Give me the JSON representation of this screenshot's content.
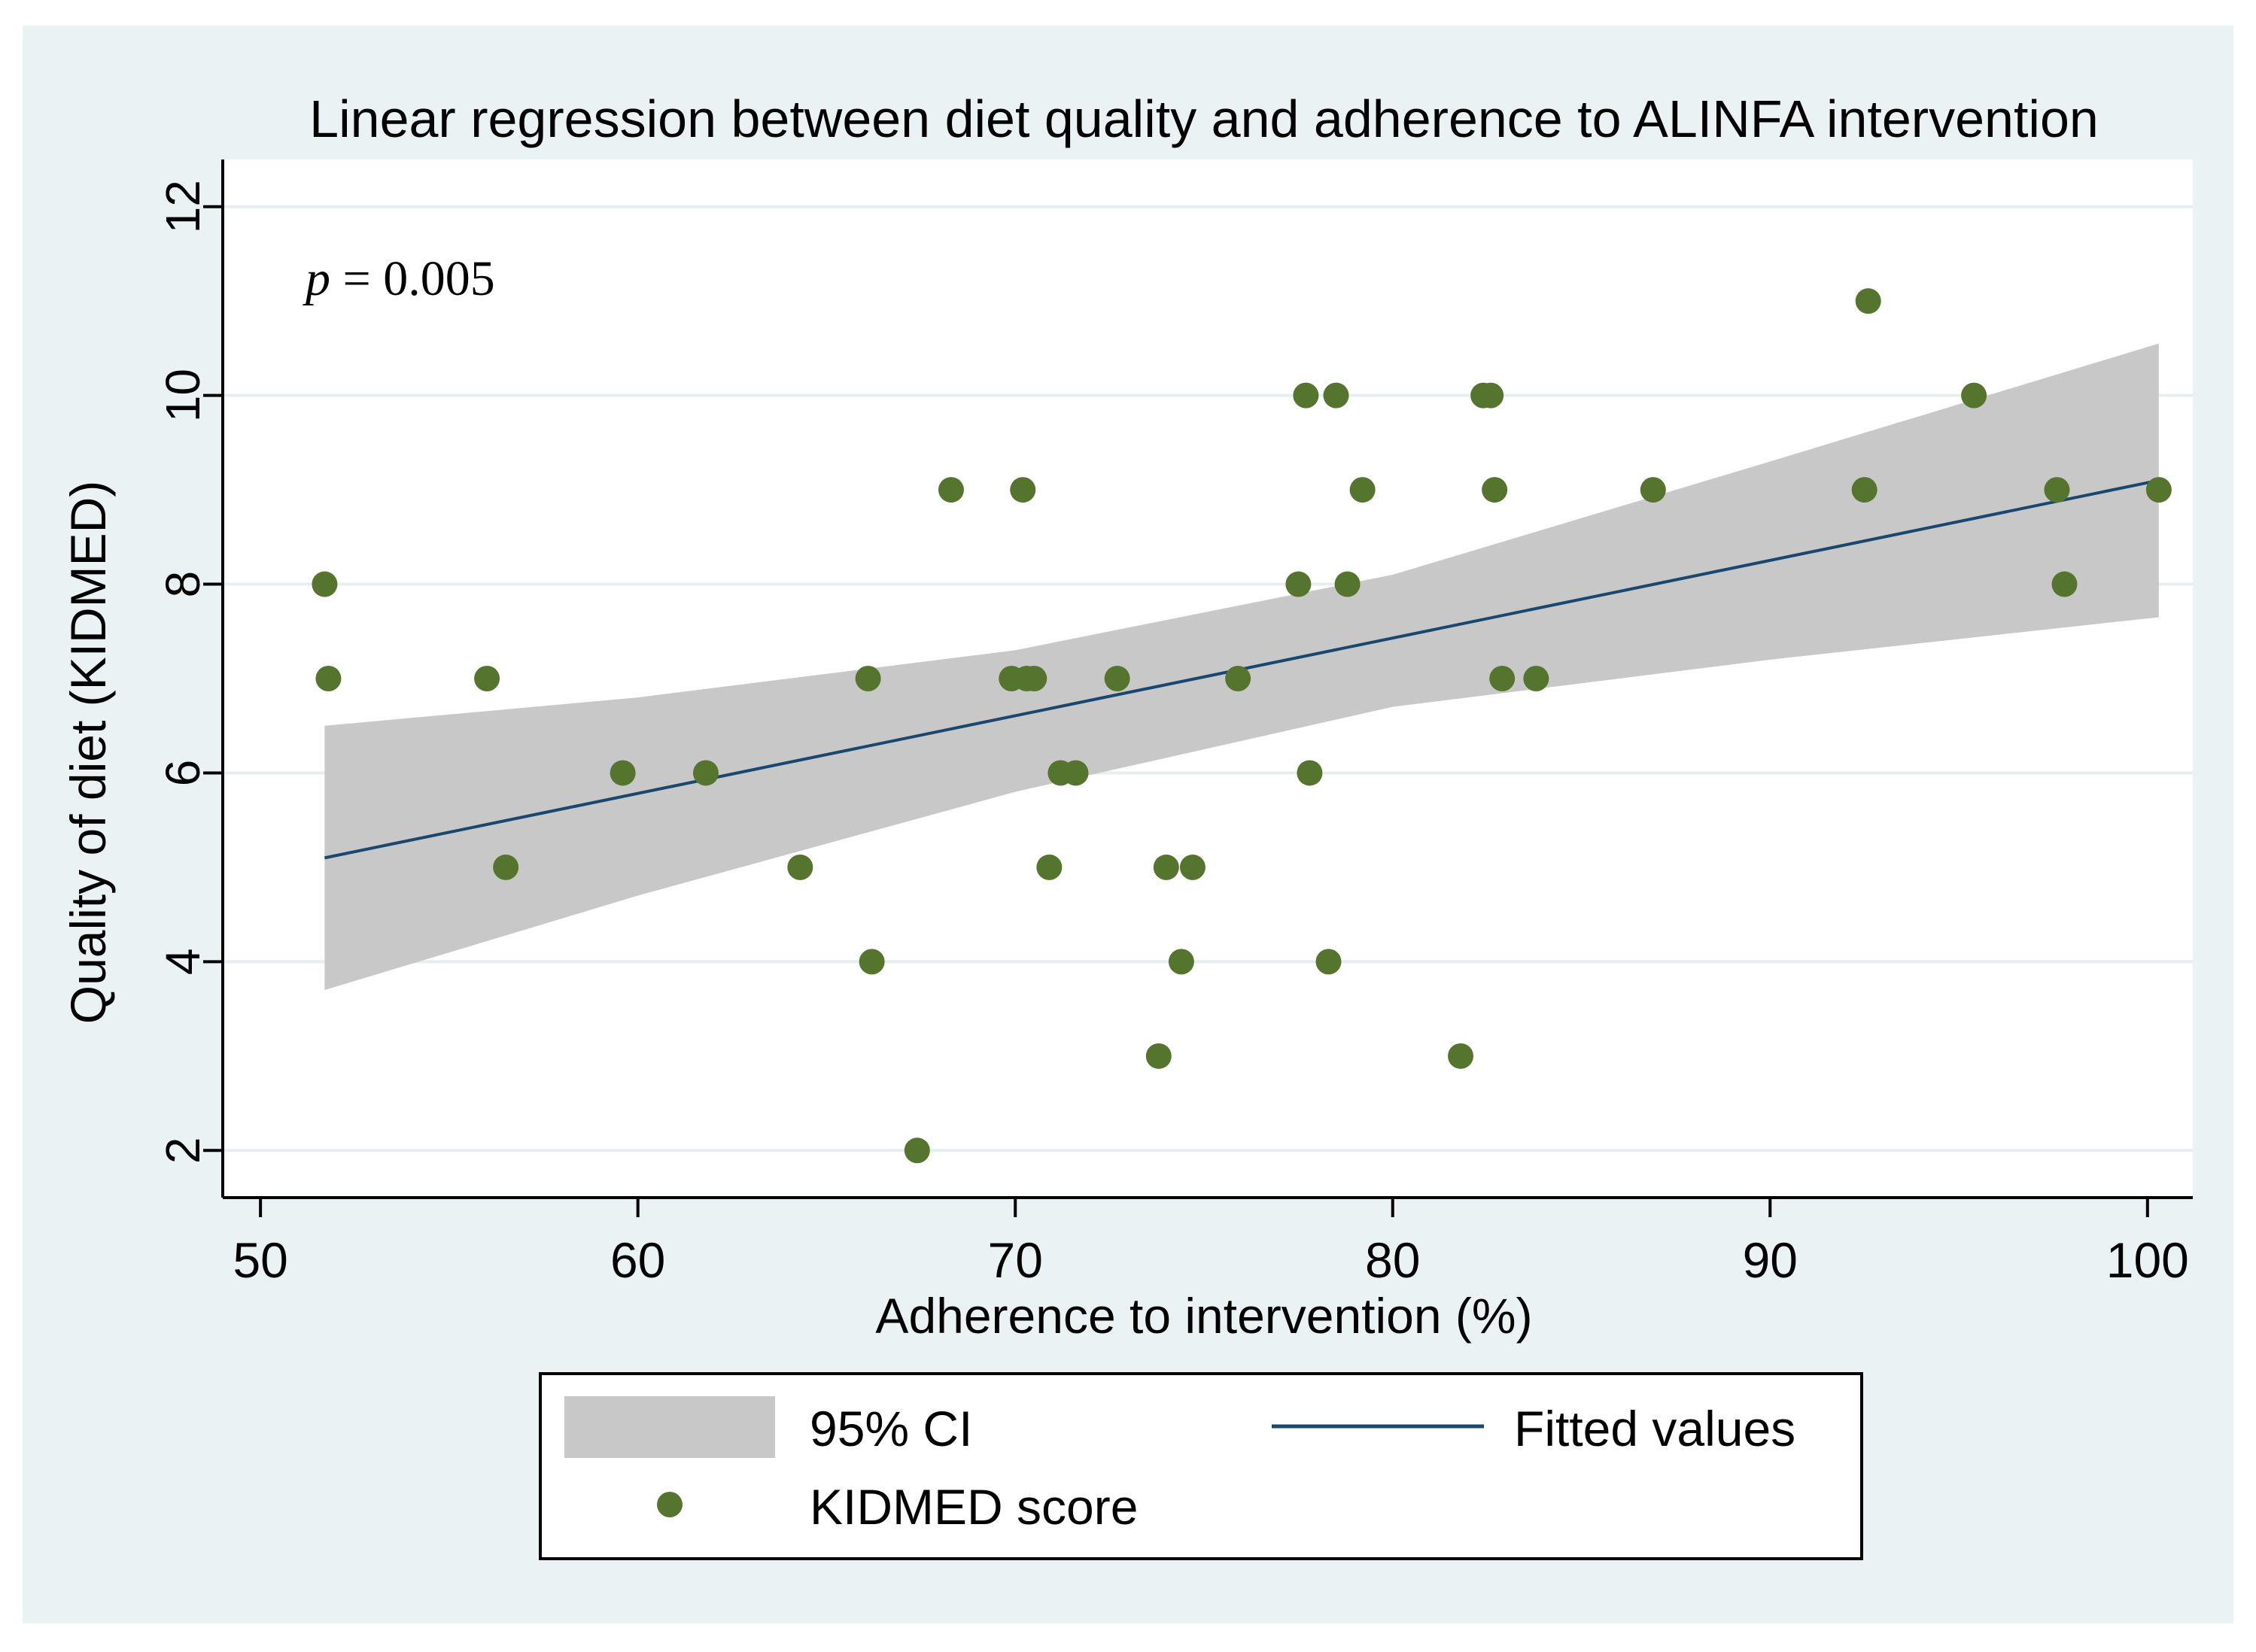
{
  "chart_data": {
    "type": "scatter",
    "title": "Linear regression between diet quality and adherence to ALINFA intervention",
    "xlabel": "Adherence to intervention (%)",
    "ylabel": "Quality of diet (KIDMED)",
    "xlim": [
      49,
      101.2
    ],
    "ylim": [
      1.5,
      12.5
    ],
    "xticks": [
      50,
      60,
      70,
      80,
      90,
      100
    ],
    "yticks": [
      2,
      4,
      6,
      8,
      10,
      12
    ],
    "grid": true,
    "annotation": {
      "italic": "p",
      "text": " = 0.005"
    },
    "fit": {
      "x_start": 51.7,
      "x_end": 100.3,
      "y_start": 5.1,
      "y_end": 9.1
    },
    "ci_band": {
      "x": [
        51.7,
        60,
        70,
        80,
        90,
        100.3
      ],
      "lower": [
        3.7,
        4.7,
        5.8,
        6.7,
        7.2,
        7.65
      ],
      "upper": [
        6.5,
        6.8,
        7.3,
        8.1,
        9.3,
        10.55
      ]
    },
    "series": [
      {
        "name": "KIDMED score",
        "points": [
          [
            51.7,
            8
          ],
          [
            51.8,
            7
          ],
          [
            56.0,
            7
          ],
          [
            56.5,
            5
          ],
          [
            59.6,
            6
          ],
          [
            61.8,
            6
          ],
          [
            64.3,
            5
          ],
          [
            66.1,
            7
          ],
          [
            66.2,
            4
          ],
          [
            67.4,
            2
          ],
          [
            68.3,
            9
          ],
          [
            69.9,
            7
          ],
          [
            70.2,
            9
          ],
          [
            70.3,
            7
          ],
          [
            70.5,
            7
          ],
          [
            70.9,
            5
          ],
          [
            71.2,
            6
          ],
          [
            71.6,
            6
          ],
          [
            72.7,
            7
          ],
          [
            73.8,
            3
          ],
          [
            74.0,
            5
          ],
          [
            74.4,
            4
          ],
          [
            74.7,
            5
          ],
          [
            75.9,
            7
          ],
          [
            77.5,
            8
          ],
          [
            77.7,
            10
          ],
          [
            77.8,
            6
          ],
          [
            78.3,
            4
          ],
          [
            78.5,
            10
          ],
          [
            78.8,
            8
          ],
          [
            79.2,
            9
          ],
          [
            81.8,
            3
          ],
          [
            82.4,
            10
          ],
          [
            82.6,
            10
          ],
          [
            82.7,
            9
          ],
          [
            82.9,
            7
          ],
          [
            83.8,
            7
          ],
          [
            86.9,
            9
          ],
          [
            92.5,
            9
          ],
          [
            92.6,
            11
          ],
          [
            95.4,
            10
          ],
          [
            97.6,
            9
          ],
          [
            97.8,
            8
          ],
          [
            100.3,
            9
          ]
        ]
      }
    ],
    "legend": {
      "position": "bottom",
      "ci_label": "95% CI",
      "fit_label": "Fitted values",
      "scatter_label": "KIDMED score"
    },
    "colors": {
      "outer_background": "#eaf2f3",
      "plot_background": "#ffffff",
      "grid": "#e6eef0",
      "ci_band": "#c8c8c8",
      "fit_line": "#1a476f",
      "points": "#55752f",
      "axis": "#000000"
    }
  }
}
